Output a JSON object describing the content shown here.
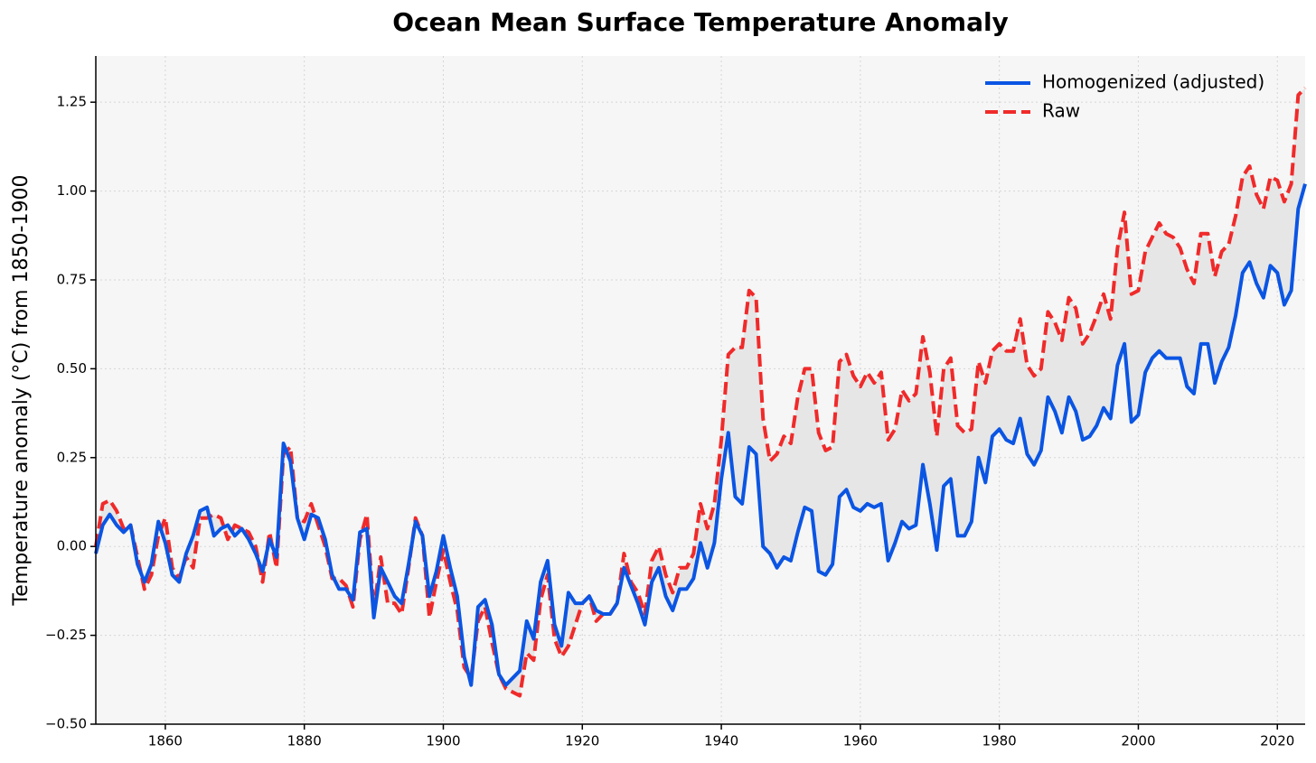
{
  "chart_data": {
    "type": "line",
    "title": "Ocean Mean Surface Temperature Anomaly",
    "y_label": "Temperature anomaly (°C) from 1850-1900",
    "x": [
      1850,
      1851,
      1852,
      1853,
      1854,
      1855,
      1856,
      1857,
      1858,
      1859,
      1860,
      1861,
      1862,
      1863,
      1864,
      1865,
      1866,
      1867,
      1868,
      1869,
      1870,
      1871,
      1872,
      1873,
      1874,
      1875,
      1876,
      1877,
      1878,
      1879,
      1880,
      1881,
      1882,
      1883,
      1884,
      1885,
      1886,
      1887,
      1888,
      1889,
      1890,
      1891,
      1892,
      1893,
      1894,
      1895,
      1896,
      1897,
      1898,
      1899,
      1900,
      1901,
      1902,
      1903,
      1904,
      1905,
      1906,
      1907,
      1908,
      1909,
      1910,
      1911,
      1912,
      1913,
      1914,
      1915,
      1916,
      1917,
      1918,
      1919,
      1920,
      1921,
      1922,
      1923,
      1924,
      1925,
      1926,
      1927,
      1928,
      1929,
      1930,
      1931,
      1932,
      1933,
      1934,
      1935,
      1936,
      1937,
      1938,
      1939,
      1940,
      1941,
      1942,
      1943,
      1944,
      1945,
      1946,
      1947,
      1948,
      1949,
      1950,
      1951,
      1952,
      1953,
      1954,
      1955,
      1956,
      1957,
      1958,
      1959,
      1960,
      1961,
      1962,
      1963,
      1964,
      1965,
      1966,
      1967,
      1968,
      1969,
      1970,
      1971,
      1972,
      1973,
      1974,
      1975,
      1976,
      1977,
      1978,
      1979,
      1980,
      1981,
      1982,
      1983,
      1984,
      1985,
      1986,
      1987,
      1988,
      1989,
      1990,
      1991,
      1992,
      1993,
      1994,
      1995,
      1996,
      1997,
      1998,
      1999,
      2000,
      2001,
      2002,
      2003,
      2004,
      2005,
      2006,
      2007,
      2008,
      2009,
      2010,
      2011,
      2012,
      2013,
      2014,
      2015,
      2016,
      2017,
      2018,
      2019,
      2020,
      2021,
      2022,
      2023,
      2024
    ],
    "series": [
      {
        "name": "Homogenized (adjusted)",
        "color": "#0b55e3",
        "dash": "solid",
        "values": [
          -0.02,
          0.06,
          0.09,
          0.06,
          0.04,
          0.06,
          -0.05,
          -0.1,
          -0.05,
          0.07,
          0.01,
          -0.08,
          -0.1,
          -0.02,
          0.03,
          0.1,
          0.11,
          0.03,
          0.05,
          0.06,
          0.03,
          0.05,
          0.02,
          -0.02,
          -0.07,
          0.02,
          -0.03,
          0.29,
          0.24,
          0.08,
          0.02,
          0.09,
          0.08,
          0.02,
          -0.08,
          -0.12,
          -0.12,
          -0.15,
          0.04,
          0.05,
          -0.2,
          -0.06,
          -0.1,
          -0.14,
          -0.16,
          -0.05,
          0.07,
          0.03,
          -0.14,
          -0.07,
          0.03,
          -0.06,
          -0.14,
          -0.31,
          -0.39,
          -0.17,
          -0.15,
          -0.22,
          -0.36,
          -0.39,
          -0.37,
          -0.35,
          -0.21,
          -0.26,
          -0.1,
          -0.04,
          -0.22,
          -0.28,
          -0.13,
          -0.16,
          -0.16,
          -0.14,
          -0.18,
          -0.19,
          -0.19,
          -0.16,
          -0.06,
          -0.11,
          -0.16,
          -0.22,
          -0.1,
          -0.06,
          -0.14,
          -0.18,
          -0.12,
          -0.12,
          -0.09,
          0.01,
          -0.06,
          0.01,
          0.19,
          0.32,
          0.14,
          0.12,
          0.28,
          0.26,
          0.0,
          -0.02,
          -0.06,
          -0.03,
          -0.04,
          0.04,
          0.11,
          0.1,
          -0.07,
          -0.08,
          -0.05,
          0.14,
          0.16,
          0.11,
          0.1,
          0.12,
          0.11,
          0.12,
          -0.04,
          0.01,
          0.07,
          0.05,
          0.06,
          0.23,
          0.12,
          -0.01,
          0.17,
          0.19,
          0.03,
          0.03,
          0.07,
          0.25,
          0.18,
          0.31,
          0.33,
          0.3,
          0.29,
          0.36,
          0.26,
          0.23,
          0.27,
          0.42,
          0.38,
          0.32,
          0.42,
          0.38,
          0.3,
          0.31,
          0.34,
          0.39,
          0.36,
          0.51,
          0.57,
          0.35,
          0.37,
          0.49,
          0.53,
          0.55,
          0.53,
          0.53,
          0.53,
          0.45,
          0.43,
          0.57,
          0.57,
          0.46,
          0.52,
          0.56,
          0.65,
          0.77,
          0.8,
          0.74,
          0.7,
          0.79,
          0.77,
          0.68,
          0.72,
          0.95,
          1.02
        ]
      },
      {
        "name": "Raw",
        "color": "#f02a2a",
        "dash": "dashed",
        "values": [
          0.0,
          0.12,
          0.13,
          0.1,
          0.05,
          0.06,
          -0.03,
          -0.12,
          -0.08,
          0.03,
          0.08,
          -0.06,
          -0.09,
          -0.03,
          -0.06,
          0.08,
          0.08,
          0.09,
          0.08,
          0.02,
          0.06,
          0.05,
          0.04,
          0.0,
          -0.1,
          0.04,
          -0.06,
          0.26,
          0.28,
          0.08,
          0.07,
          0.12,
          0.06,
          0.0,
          -0.09,
          -0.09,
          -0.11,
          -0.17,
          0.02,
          0.09,
          -0.18,
          -0.03,
          -0.16,
          -0.16,
          -0.19,
          -0.06,
          0.08,
          0.03,
          -0.2,
          -0.1,
          -0.01,
          -0.1,
          -0.18,
          -0.34,
          -0.37,
          -0.21,
          -0.17,
          -0.27,
          -0.36,
          -0.4,
          -0.41,
          -0.42,
          -0.3,
          -0.32,
          -0.15,
          -0.08,
          -0.26,
          -0.31,
          -0.28,
          -0.22,
          -0.16,
          -0.14,
          -0.21,
          -0.19,
          -0.19,
          -0.16,
          -0.02,
          -0.1,
          -0.13,
          -0.19,
          -0.04,
          0.0,
          -0.08,
          -0.13,
          -0.06,
          -0.06,
          -0.02,
          0.12,
          0.05,
          0.12,
          0.3,
          0.54,
          0.56,
          0.56,
          0.72,
          0.7,
          0.36,
          0.24,
          0.26,
          0.31,
          0.29,
          0.42,
          0.5,
          0.5,
          0.32,
          0.27,
          0.28,
          0.52,
          0.54,
          0.48,
          0.45,
          0.49,
          0.46,
          0.49,
          0.3,
          0.33,
          0.44,
          0.41,
          0.43,
          0.59,
          0.49,
          0.31,
          0.5,
          0.53,
          0.34,
          0.32,
          0.33,
          0.52,
          0.46,
          0.55,
          0.57,
          0.55,
          0.55,
          0.64,
          0.51,
          0.48,
          0.5,
          0.66,
          0.63,
          0.58,
          0.7,
          0.67,
          0.57,
          0.6,
          0.65,
          0.71,
          0.64,
          0.84,
          0.94,
          0.71,
          0.72,
          0.83,
          0.87,
          0.91,
          0.88,
          0.87,
          0.84,
          0.78,
          0.74,
          0.88,
          0.88,
          0.76,
          0.83,
          0.85,
          0.93,
          1.04,
          1.07,
          0.99,
          0.95,
          1.04,
          1.03,
          0.97,
          1.02,
          1.27,
          1.29
        ]
      }
    ],
    "fill_between_color": "#e6e6e6",
    "xlim": [
      1850,
      2024
    ],
    "xticks": [
      1860,
      1880,
      1900,
      1920,
      1940,
      1960,
      1980,
      2000,
      2020
    ],
    "ylim": [
      -0.5,
      1.38
    ],
    "yticks": [
      {
        "value": -0.5,
        "label": "−0.50"
      },
      {
        "value": -0.25,
        "label": "−0.25"
      },
      {
        "value": 0,
        "label": "0.00"
      },
      {
        "value": 0.25,
        "label": "0.25"
      },
      {
        "value": 0.5,
        "label": "0.50"
      },
      {
        "value": 0.75,
        "label": "0.75"
      },
      {
        "value": 1,
        "label": "1.00"
      },
      {
        "value": 1.25,
        "label": "1.25"
      }
    ],
    "grid": true,
    "legend": "upper right"
  }
}
